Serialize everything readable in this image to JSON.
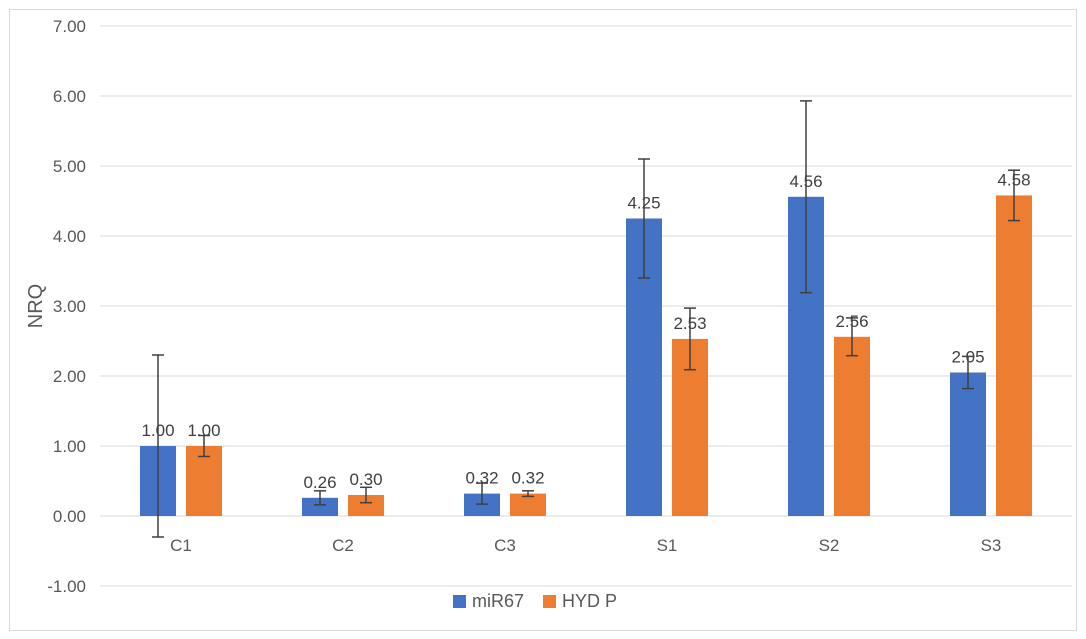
{
  "chart_data": {
    "type": "bar",
    "title": "",
    "xlabel": "",
    "ylabel": "NRQ",
    "ylim": [
      -1,
      7
    ],
    "yticks": [
      "-1.00",
      "0.00",
      "1.00",
      "2.00",
      "3.00",
      "4.00",
      "5.00",
      "6.00",
      "7.00"
    ],
    "grid": true,
    "legend_position": "bottom",
    "categories": [
      "C1",
      "C2",
      "C3",
      "S1",
      "S2",
      "S3"
    ],
    "series": [
      {
        "name": "miR67",
        "color": "#4472c4",
        "values": [
          1.0,
          0.26,
          0.32,
          4.25,
          4.56,
          2.05
        ],
        "labels": [
          "1.00",
          "0.26",
          "0.32",
          "4.25",
          "4.56",
          "2.05"
        ],
        "error": [
          1.3,
          0.1,
          0.15,
          0.85,
          1.37,
          0.23
        ]
      },
      {
        "name": "HYD P",
        "color": "#ed7d31",
        "values": [
          1.0,
          0.3,
          0.32,
          2.53,
          2.56,
          4.58
        ],
        "labels": [
          "1.00",
          "0.30",
          "0.32",
          "2.53",
          "2.56",
          "4.58"
        ],
        "error": [
          0.15,
          0.11,
          0.04,
          0.44,
          0.27,
          0.36
        ]
      }
    ]
  }
}
